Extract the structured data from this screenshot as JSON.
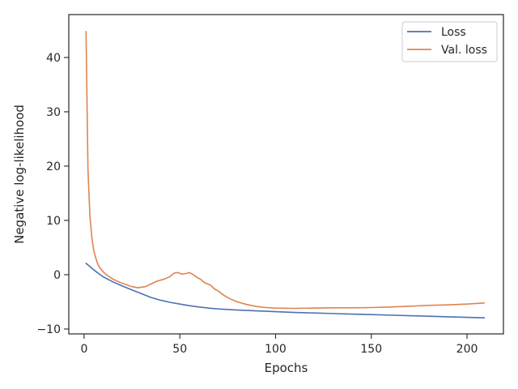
{
  "chart_data": {
    "type": "line",
    "title": "",
    "xlabel": "Epochs",
    "ylabel": "Negative log-likelihood",
    "xlim": [
      -8,
      219
    ],
    "ylim": [
      -10.9,
      47.9
    ],
    "xticks": [
      0,
      50,
      100,
      150,
      200
    ],
    "yticks": [
      -10,
      0,
      10,
      20,
      30,
      40
    ],
    "xtick_labels": [
      "0",
      "50",
      "100",
      "150",
      "200"
    ],
    "ytick_labels": [
      "−10",
      "0",
      "10",
      "20",
      "30",
      "40"
    ],
    "grid": false,
    "legend_position": "top-right",
    "series": [
      {
        "name": "Loss",
        "color": "#4c72b0",
        "points": [
          [
            1,
            2.1
          ],
          [
            3,
            1.5
          ],
          [
            5,
            0.9
          ],
          [
            8,
            0.1
          ],
          [
            10,
            -0.4
          ],
          [
            15,
            -1.3
          ],
          [
            20,
            -2.1
          ],
          [
            25,
            -2.8
          ],
          [
            30,
            -3.5
          ],
          [
            35,
            -4.2
          ],
          [
            40,
            -4.7
          ],
          [
            45,
            -5.1
          ],
          [
            50,
            -5.4
          ],
          [
            55,
            -5.7
          ],
          [
            60,
            -5.95
          ],
          [
            65,
            -6.15
          ],
          [
            70,
            -6.3
          ],
          [
            80,
            -6.5
          ],
          [
            90,
            -6.65
          ],
          [
            100,
            -6.8
          ],
          [
            110,
            -6.95
          ],
          [
            120,
            -7.05
          ],
          [
            130,
            -7.15
          ],
          [
            140,
            -7.25
          ],
          [
            150,
            -7.35
          ],
          [
            160,
            -7.45
          ],
          [
            170,
            -7.55
          ],
          [
            180,
            -7.65
          ],
          [
            190,
            -7.75
          ],
          [
            200,
            -7.85
          ],
          [
            209,
            -7.95
          ]
        ]
      },
      {
        "name": "Val. loss",
        "color": "#dd8452",
        "points": [
          [
            1,
            44.8
          ],
          [
            2,
            19.5
          ],
          [
            3,
            11.0
          ],
          [
            4,
            7.0
          ],
          [
            5,
            4.5
          ],
          [
            6,
            3.2
          ],
          [
            7,
            2.1
          ],
          [
            8,
            1.4
          ],
          [
            10,
            0.5
          ],
          [
            12,
            -0.1
          ],
          [
            15,
            -0.8
          ],
          [
            18,
            -1.3
          ],
          [
            20,
            -1.6
          ],
          [
            25,
            -2.2
          ],
          [
            28,
            -2.4
          ],
          [
            32,
            -2.2
          ],
          [
            35,
            -1.7
          ],
          [
            38,
            -1.2
          ],
          [
            42,
            -0.8
          ],
          [
            45,
            -0.3
          ],
          [
            47,
            0.3
          ],
          [
            49,
            0.4
          ],
          [
            51,
            0.1
          ],
          [
            53,
            0.2
          ],
          [
            55,
            0.4
          ],
          [
            57,
            0.0
          ],
          [
            59,
            -0.5
          ],
          [
            61,
            -0.9
          ],
          [
            63,
            -1.5
          ],
          [
            66,
            -1.9
          ],
          [
            68,
            -2.6
          ],
          [
            70,
            -3.0
          ],
          [
            73,
            -3.8
          ],
          [
            76,
            -4.4
          ],
          [
            80,
            -5.0
          ],
          [
            85,
            -5.5
          ],
          [
            90,
            -5.85
          ],
          [
            95,
            -6.05
          ],
          [
            100,
            -6.15
          ],
          [
            110,
            -6.2
          ],
          [
            120,
            -6.15
          ],
          [
            130,
            -6.1
          ],
          [
            140,
            -6.1
          ],
          [
            150,
            -6.05
          ],
          [
            160,
            -5.95
          ],
          [
            170,
            -5.8
          ],
          [
            180,
            -5.65
          ],
          [
            190,
            -5.55
          ],
          [
            200,
            -5.4
          ],
          [
            209,
            -5.2
          ]
        ]
      }
    ]
  }
}
